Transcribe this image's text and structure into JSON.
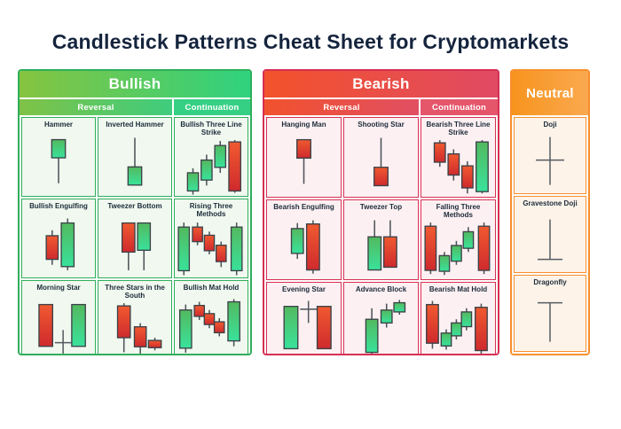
{
  "title": "Candlestick Patterns Cheat Sheet for Cryptomarkets",
  "colors": {
    "title_text": "#15243d",
    "candle_green_top": "#53b95f",
    "candle_green_bottom": "#39e29b",
    "candle_red_top": "#f05a30",
    "candle_red_bottom": "#cf2a2d",
    "candle_outline": "#3b4248",
    "wick": "#4d545a"
  },
  "panels": [
    {
      "id": "bullish",
      "label": "Bullish",
      "header_gradient": [
        "#86c440",
        "#2fd27f"
      ],
      "sub_reversal_gradient": [
        "#7fc246",
        "#3ecd7e"
      ],
      "sub_continuation": "#35d084",
      "line_color": "#2fae5b",
      "cell_bg": "#f0f8ef",
      "columns": 3,
      "subheaders": [
        {
          "label": "Reversal",
          "span": 2
        },
        {
          "label": "Continuation",
          "span": 1
        }
      ],
      "cells": [
        {
          "name": "Hammer",
          "draw": [
            [
              "c",
              40,
              6,
              26,
              6,
              54,
              "g",
              15
            ]
          ]
        },
        {
          "name": "Inverted Hammer",
          "draw": [
            [
              "c",
              40,
              36,
              56,
              4,
              56,
              "g",
              15
            ]
          ]
        },
        {
          "name": "Bullish Three Line Strike",
          "draw": [
            [
              "c",
              20,
              38,
              58,
              33,
              62,
              "g",
              12
            ],
            [
              "c",
              35,
              24,
              46,
              18,
              52,
              "g",
              12
            ],
            [
              "c",
              50,
              8,
              32,
              3,
              38,
              "g",
              12
            ],
            [
              "c",
              66,
              4,
              58,
              2,
              60,
              "r",
              13
            ]
          ]
        },
        {
          "name": "Bullish Engulfing",
          "draw": [
            [
              "c",
              33,
              22,
              48,
              16,
              54,
              "r",
              13
            ],
            [
              "c",
              50,
              8,
              56,
              3,
              60,
              "g",
              14
            ]
          ]
        },
        {
          "name": "Tweezer Bottom",
          "draw": [
            [
              "c",
              33,
              8,
              40,
              8,
              60,
              "r",
              14
            ],
            [
              "c",
              50,
              8,
              38,
              8,
              60,
              "g",
              14
            ]
          ]
        },
        {
          "name": "Rising Three Methods",
          "draw": [
            [
              "c",
              10,
              8,
              56,
              3,
              61,
              "g",
              12
            ],
            [
              "c",
              25,
              8,
              24,
              3,
              28,
              "r",
              11
            ],
            [
              "c",
              38,
              17,
              34,
              13,
              38,
              "r",
              11
            ],
            [
              "c",
              51,
              28,
              46,
              24,
              52,
              "r",
              11
            ],
            [
              "c",
              68,
              8,
              56,
              3,
              61,
              "g",
              12
            ]
          ]
        },
        {
          "name": "Morning Star",
          "draw": [
            [
              "c",
              26,
              8,
              54,
              8,
              54,
              "r",
              15
            ],
            [
              "d",
              45,
              36,
              62,
              50,
              36,
              54
            ],
            [
              "c",
              62,
              8,
              54,
              8,
              54,
              "g",
              15
            ]
          ]
        },
        {
          "name": "Three Stars in the South",
          "draw": [
            [
              "c",
              28,
              5,
              40,
              2,
              56,
              "r",
              14
            ],
            [
              "c",
              46,
              28,
              50,
              24,
              60,
              "r",
              13
            ],
            [
              "c",
              62,
              43,
              51,
              40,
              54,
              "r",
              14
            ]
          ]
        },
        {
          "name": "Bullish Mat Hold",
          "draw": [
            [
              "c",
              12,
              14,
              56,
              8,
              61,
              "g",
              13
            ],
            [
              "c",
              27,
              9,
              21,
              5,
              25,
              "r",
              11
            ],
            [
              "c",
              38,
              18,
              30,
              14,
              34,
              "r",
              11
            ],
            [
              "c",
              49,
              27,
              39,
              23,
              43,
              "r",
              11
            ],
            [
              "c",
              65,
              5,
              48,
              2,
              54,
              "g",
              13
            ]
          ]
        }
      ]
    },
    {
      "id": "bearish",
      "label": "Bearish",
      "header_gradient": [
        "#f3522b",
        "#e04a63"
      ],
      "sub_reversal_gradient": [
        "#f1522d",
        "#e14f62"
      ],
      "sub_continuation": "#e5566b",
      "line_color": "#d63053",
      "cell_bg": "#fdf0f2",
      "columns": 3,
      "subheaders": [
        {
          "label": "Reversal",
          "span": 2
        },
        {
          "label": "Continuation",
          "span": 1
        }
      ],
      "cells": [
        {
          "name": "Hanging Man",
          "draw": [
            [
              "c",
              40,
              6,
              26,
              6,
              54,
              "r",
              15
            ]
          ]
        },
        {
          "name": "Shooting Star",
          "draw": [
            [
              "c",
              40,
              36,
              56,
              4,
              56,
              "r",
              15
            ]
          ]
        },
        {
          "name": "Bearish Three Line Strike",
          "draw": [
            [
              "c",
              20,
              5,
              26,
              2,
              31,
              "r",
              12
            ],
            [
              "c",
              35,
              17,
              40,
              12,
              46,
              "r",
              12
            ],
            [
              "c",
              50,
              30,
              54,
              25,
              60,
              "r",
              12
            ],
            [
              "c",
              66,
              4,
              58,
              2,
              60,
              "g",
              13
            ]
          ]
        },
        {
          "name": "Bearish Engulfing",
          "draw": [
            [
              "c",
              33,
              13,
              40,
              7,
              46,
              "g",
              13
            ],
            [
              "c",
              50,
              8,
              58,
              4,
              62,
              "r",
              14
            ]
          ]
        },
        {
          "name": "Tweezer Top",
          "draw": [
            [
              "c",
              33,
              22,
              58,
              4,
              58,
              "g",
              14
            ],
            [
              "c",
              50,
              22,
              55,
              4,
              55,
              "r",
              14
            ]
          ]
        },
        {
          "name": "Falling Three Methods",
          "draw": [
            [
              "c",
              10,
              6,
              54,
              2,
              58,
              "r",
              12
            ],
            [
              "c",
              25,
              38,
              55,
              34,
              59,
              "g",
              11
            ],
            [
              "c",
              38,
              27,
              44,
              22,
              48,
              "g",
              11
            ],
            [
              "c",
              51,
              12,
              30,
              7,
              34,
              "g",
              11
            ],
            [
              "c",
              68,
              6,
              54,
              2,
              58,
              "r",
              12
            ]
          ]
        },
        {
          "name": "Evening Star",
          "draw": [
            [
              "c",
              26,
              8,
              54,
              8,
              54,
              "g",
              15
            ],
            [
              "d",
              45,
              2,
              26,
              11,
              36,
              54
            ],
            [
              "c",
              62,
              8,
              54,
              8,
              54,
              "r",
              15
            ]
          ]
        },
        {
          "name": "Advance Block",
          "draw": [
            [
              "c",
              30,
              22,
              58,
              10,
              62,
              "g",
              13
            ],
            [
              "c",
              46,
              12,
              26,
              5,
              31,
              "g",
              12
            ],
            [
              "c",
              60,
              4,
              14,
              1,
              17,
              "g",
              12
            ]
          ]
        },
        {
          "name": "Bearish Mat Hold",
          "draw": [
            [
              "c",
              12,
              6,
              48,
              2,
              54,
              "r",
              13
            ],
            [
              "c",
              27,
              37,
              51,
              33,
              55,
              "g",
              11
            ],
            [
              "c",
              38,
              26,
              40,
              22,
              44,
              "g",
              11
            ],
            [
              "c",
              49,
              14,
              30,
              10,
              34,
              "g",
              11
            ],
            [
              "c",
              65,
              9,
              56,
              5,
              60,
              "r",
              13
            ]
          ]
        }
      ]
    },
    {
      "id": "neutral",
      "label": "Neutral",
      "header_gradient": [
        "#f7941e",
        "#faa94f"
      ],
      "line_color": "#f78f2e",
      "cell_bg": "#fdf3e9",
      "columns": 1,
      "subheaders": [],
      "cells": [
        {
          "name": "Doji",
          "draw": [
            [
              "d",
              40,
              4,
              58,
              30,
              24,
              56
            ]
          ]
        },
        {
          "name": "Gravestone Doji",
          "draw": [
            [
              "d",
              40,
              8,
              53,
              53,
              26,
              54
            ]
          ]
        },
        {
          "name": "Dragonfly",
          "draw": [
            [
              "d",
              40,
              13,
              57,
              13,
              26,
              54
            ]
          ]
        }
      ]
    }
  ]
}
